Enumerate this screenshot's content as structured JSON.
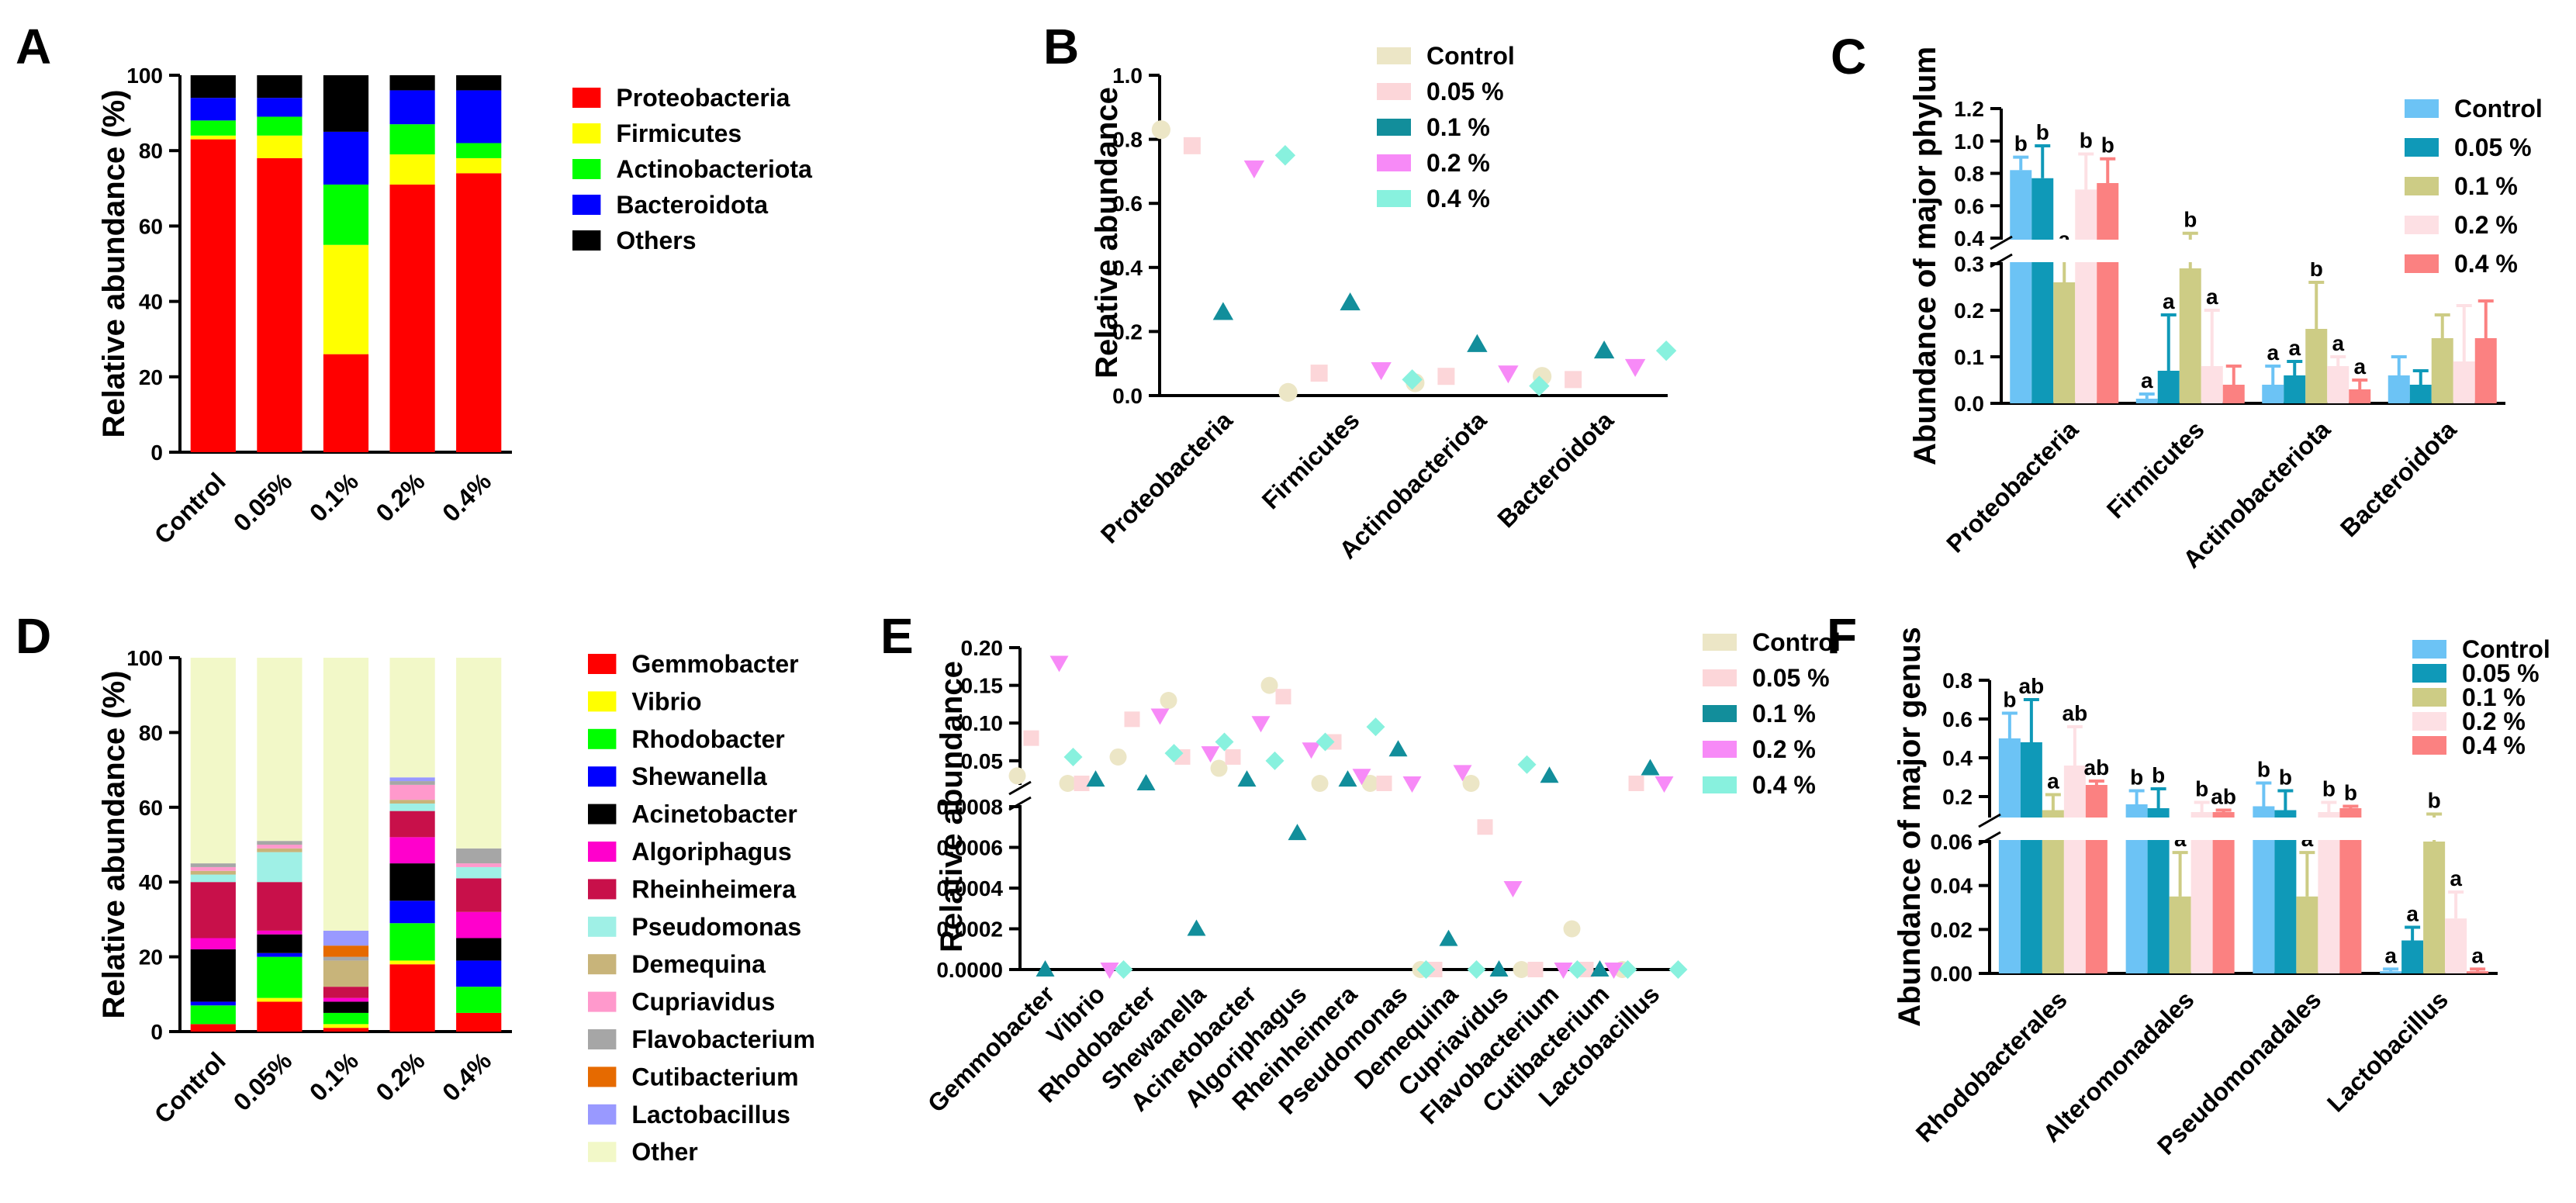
{
  "panels": {
    "A": "A",
    "B": "B",
    "C": "C",
    "D": "D",
    "E": "E",
    "F": "F"
  },
  "colors": {
    "Control": "#ece6c6",
    "0.05": "#fcd6d9",
    "0.1": "#128e9b",
    "0.2": "#f78af7",
    "0.4": "#88f1de",
    "C_Control": "#6cc3f5",
    "C_0.05": "#0f99b8",
    "C_0.1": "#cdcc85",
    "C_0.2": "#fde0e4",
    "C_0.4": "#fb8181"
  },
  "chart_data": [
    {
      "id": "A",
      "type": "bar",
      "stacked": true,
      "ylabel": "Relative abundance (%)",
      "ylim": [
        0,
        100
      ],
      "yticks": [
        "0",
        "20",
        "40",
        "60",
        "80",
        "100"
      ],
      "categories": [
        "Control",
        "0.05%",
        "0.1%",
        "0.2%",
        "0.4%"
      ],
      "series": [
        {
          "name": "Proteobacteria",
          "color": "#ff0000",
          "values": [
            83,
            78,
            26,
            71,
            74
          ]
        },
        {
          "name": "Firmicutes",
          "color": "#ffff00",
          "values": [
            1,
            6,
            29,
            8,
            4
          ]
        },
        {
          "name": "Actinobacteriota",
          "color": "#00ff00",
          "values": [
            4,
            5,
            16,
            8,
            4
          ]
        },
        {
          "name": "Bacteroidota",
          "color": "#0000ff",
          "values": [
            6,
            5,
            14,
            9,
            14
          ]
        },
        {
          "name": "Others",
          "color": "#000000",
          "values": [
            6,
            6,
            15,
            4,
            4
          ]
        }
      ]
    },
    {
      "id": "B",
      "type": "scatter",
      "ylabel": "Relative abundance",
      "ylim": [
        0,
        1.0
      ],
      "yticks": [
        "0.0",
        "0.2",
        "0.4",
        "0.6",
        "0.8",
        "1.0"
      ],
      "categories": [
        "Proteobacteria",
        "Firmicutes",
        "Actinobacteriota",
        "Bacteroidota"
      ],
      "series": [
        {
          "name": "Control",
          "values": [
            0.83,
            0.01,
            0.04,
            0.06
          ]
        },
        {
          "name": "0.05 %",
          "values": [
            0.78,
            0.07,
            0.06,
            0.05
          ]
        },
        {
          "name": "0.1 %",
          "values": [
            0.26,
            0.29,
            0.16,
            0.14
          ]
        },
        {
          "name": "0.2 %",
          "values": [
            0.71,
            0.08,
            0.07,
            0.09
          ]
        },
        {
          "name": "0.4 %",
          "values": [
            0.75,
            0.05,
            0.03,
            0.14
          ]
        }
      ]
    },
    {
      "id": "C",
      "type": "bar",
      "ylabel": "Abundance of major phylum",
      "yticks_top": [
        "0.4",
        "0.6",
        "0.8",
        "1.0",
        "1.2"
      ],
      "yticks_bottom": [
        "0.0",
        "0.1",
        "0.2",
        "0.3"
      ],
      "categories": [
        "Proteobacteria",
        "Firmicutes",
        "Actinobacteriota",
        "Bacteroidota"
      ],
      "series": [
        {
          "name": "Control",
          "values": [
            0.82,
            0.01,
            0.04,
            0.06
          ],
          "errors": [
            0.08,
            0.01,
            0.04,
            0.04
          ],
          "sig": [
            "b",
            "a",
            "a",
            ""
          ]
        },
        {
          "name": "0.05 %",
          "values": [
            0.77,
            0.07,
            0.06,
            0.04
          ],
          "errors": [
            0.2,
            0.12,
            0.03,
            0.03
          ],
          "sig": [
            "b",
            "a",
            "a",
            ""
          ]
        },
        {
          "name": "0.1 %",
          "values": [
            0.26,
            0.29,
            0.16,
            0.14
          ],
          "errors": [
            0.05,
            0.14,
            0.1,
            0.05
          ],
          "sig": [
            "a",
            "b",
            "b",
            ""
          ]
        },
        {
          "name": "0.2 %",
          "values": [
            0.7,
            0.08,
            0.08,
            0.09
          ],
          "errors": [
            0.22,
            0.12,
            0.02,
            0.12
          ],
          "sig": [
            "b",
            "a",
            "a",
            ""
          ]
        },
        {
          "name": "0.4 %",
          "values": [
            0.74,
            0.04,
            0.03,
            0.14
          ],
          "errors": [
            0.15,
            0.04,
            0.02,
            0.08
          ],
          "sig": [
            "b",
            "",
            "a",
            ""
          ]
        }
      ]
    },
    {
      "id": "D",
      "type": "bar",
      "stacked": true,
      "ylabel": "Relative abundance (%)",
      "ylim": [
        0,
        100
      ],
      "yticks": [
        "0",
        "20",
        "40",
        "60",
        "80",
        "100"
      ],
      "categories": [
        "Control",
        "0.05%",
        "0.1%",
        "0.2%",
        "0.4%"
      ],
      "series": [
        {
          "name": "Gemmobacter",
          "color": "#ff0000",
          "values": [
            2,
            8,
            1,
            18,
            5
          ]
        },
        {
          "name": "Vibrio",
          "color": "#ffff00",
          "values": [
            0,
            1,
            1,
            1,
            0
          ]
        },
        {
          "name": "Rhodobacter",
          "color": "#00ff00",
          "values": [
            5,
            11,
            3,
            10,
            7
          ]
        },
        {
          "name": "Shewanella",
          "color": "#0000ff",
          "values": [
            1,
            1,
            0,
            6,
            7
          ]
        },
        {
          "name": "Acinetobacter",
          "color": "#000000",
          "values": [
            14,
            5,
            3,
            10,
            6
          ]
        },
        {
          "name": "Algoriphagus",
          "color": "#ff00cc",
          "values": [
            3,
            1,
            1,
            7,
            7
          ]
        },
        {
          "name": "Rheinheimera",
          "color": "#c8104a",
          "values": [
            15,
            13,
            3,
            7,
            9
          ]
        },
        {
          "name": "Pseudomonas",
          "color": "#9ff0e6",
          "values": [
            2,
            8,
            0,
            2,
            3
          ]
        },
        {
          "name": "Demequina",
          "color": "#c8b47a",
          "values": [
            1,
            1,
            7,
            1,
            0
          ]
        },
        {
          "name": "Cupriavidus",
          "color": "#ff99cc",
          "values": [
            1,
            1,
            0,
            4,
            1
          ]
        },
        {
          "name": "Flavobacterium",
          "color": "#a6a6a6",
          "values": [
            1,
            1,
            1,
            1,
            4
          ]
        },
        {
          "name": "Cutibacterium",
          "color": "#e66a00",
          "values": [
            0,
            0,
            3,
            0,
            0
          ]
        },
        {
          "name": "Lactobacillus",
          "color": "#9999ff",
          "values": [
            0,
            0,
            4,
            1,
            0
          ]
        },
        {
          "name": "Other",
          "color": "#f2f8c8",
          "values": [
            55,
            49,
            73,
            32,
            51
          ]
        }
      ]
    },
    {
      "id": "E",
      "type": "scatter",
      "ylabel": "Relative abundance",
      "yticks_top": [
        "0.05",
        "0.10",
        "0.15",
        "0.20"
      ],
      "yticks_bottom": [
        "0.0000",
        "0.0002",
        "0.0004",
        "0.0006",
        "0.0008"
      ],
      "categories": [
        "Gemmobacter",
        "Vibrio",
        "Rhodobacter",
        "Shewanella",
        "Acinetobacter",
        "Algoriphagus",
        "Rheinheimera",
        "Pseudomonas",
        "Demequina",
        "Cupriavidus",
        "Flavobacterium",
        "Cutibacterium",
        "Lactobacillus"
      ],
      "series": [
        {
          "name": "Control",
          "values": [
            0.03,
            0.02,
            0.055,
            0.13,
            0.04,
            0.15,
            0.02,
            0.02,
            0.0,
            0.02,
            0.0,
            0.0002,
            0.0
          ]
        },
        {
          "name": "0.05 %",
          "values": [
            0.08,
            0.02,
            0.105,
            0.055,
            0.055,
            0.135,
            0.075,
            0.02,
            0.0,
            0.0007,
            0.0,
            0.0,
            0.015
          ]
        },
        {
          "name": "0.1 %",
          "values": [
            0.0,
            0.025,
            0.02,
            0.0002,
            0.025,
            0.00067,
            0.025,
            0.065,
            0.00015,
            0.0,
            0.03,
            0.0,
            0.04
          ]
        },
        {
          "name": "0.2 %",
          "values": [
            0.18,
            0.0,
            0.11,
            0.06,
            0.1,
            0.065,
            0.03,
            0.02,
            0.035,
            0.0004,
            0.0,
            0.0,
            0.015
          ]
        },
        {
          "name": "0.4 %",
          "values": [
            0.055,
            0.0,
            0.06,
            0.075,
            0.05,
            0.075,
            0.095,
            0.0,
            0.0,
            0.045,
            0.0,
            0.0,
            0.0
          ]
        }
      ]
    },
    {
      "id": "F",
      "type": "bar",
      "ylabel": "Abundance of major genus",
      "yticks_top": [
        "0.2",
        "0.4",
        "0.6",
        "0.8"
      ],
      "yticks_bottom": [
        "0.00",
        "0.02",
        "0.04",
        "0.06"
      ],
      "categories": [
        "Rhodobacterales",
        "Alteromonadales",
        "Pseudomonadales",
        "Lactobacillus"
      ],
      "series": [
        {
          "name": "Control",
          "values": [
            0.5,
            0.16,
            0.15,
            0.001
          ],
          "errors": [
            0.13,
            0.07,
            0.12,
            0.001
          ],
          "sig": [
            "b",
            "b",
            "b",
            "a"
          ]
        },
        {
          "name": "0.05 %",
          "values": [
            0.48,
            0.14,
            0.13,
            0.015
          ],
          "errors": [
            0.22,
            0.1,
            0.1,
            0.006
          ],
          "sig": [
            "ab",
            "b",
            "b",
            "a"
          ]
        },
        {
          "name": "0.1 %",
          "values": [
            0.13,
            0.035,
            0.035,
            0.06
          ],
          "errors": [
            0.08,
            0.02,
            0.02,
            0.05
          ],
          "sig": [
            "a",
            "a",
            "a",
            "b"
          ]
        },
        {
          "name": "0.2 %",
          "values": [
            0.36,
            0.12,
            0.12,
            0.025
          ],
          "errors": [
            0.2,
            0.05,
            0.05,
            0.012
          ],
          "sig": [
            "ab",
            "b",
            "b",
            "a"
          ]
        },
        {
          "name": "0.4 %",
          "values": [
            0.26,
            0.12,
            0.14,
            0.001
          ],
          "errors": [
            0.02,
            0.01,
            0.01,
            0.001
          ],
          "sig": [
            "ab",
            "ab",
            "b",
            "a"
          ]
        }
      ]
    }
  ]
}
